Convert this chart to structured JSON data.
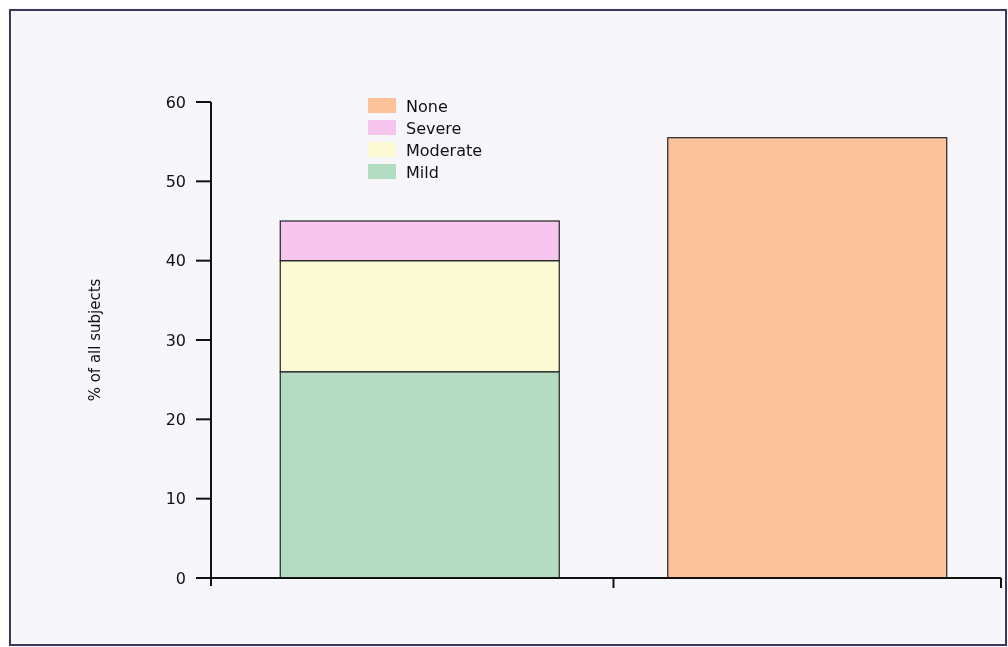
{
  "chart_data": {
    "type": "bar",
    "ylabel": "% of all subjects",
    "categories": [
      null,
      null
    ],
    "stacked": true,
    "series": [
      {
        "name": "Mild",
        "color": "#b3dcc2",
        "values": [
          26,
          null
        ]
      },
      {
        "name": "Moderate",
        "color": "#fdfad6",
        "values": [
          14,
          null
        ]
      },
      {
        "name": "Severe",
        "color": "#f6c6ef",
        "values": [
          5,
          null
        ]
      },
      {
        "name": "None",
        "color": "#fbc29c",
        "values": [
          null,
          55.5
        ]
      }
    ],
    "ylim": [
      0,
      60
    ],
    "yticks": [
      0,
      10,
      20,
      30,
      40,
      50,
      60
    ],
    "legend": "top left",
    "grid": false
  }
}
